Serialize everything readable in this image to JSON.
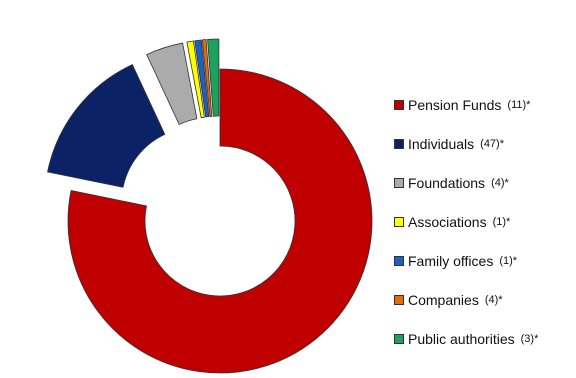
{
  "chart_data": {
    "type": "pie",
    "donut": true,
    "exploded": true,
    "values": [
      79,
      15,
      4,
      0.7,
      0.7,
      0.4,
      1.2
    ],
    "series": [
      {
        "name": "Pension Funds",
        "count": "(11)*",
        "color": "#C00000"
      },
      {
        "name": "Individuals",
        "count": "(47)*",
        "color": "#0B2266"
      },
      {
        "name": "Foundations",
        "count": "(4)*",
        "color": "#ABABAB"
      },
      {
        "name": "Associations",
        "count": "(1)*",
        "color": "#FFFF00"
      },
      {
        "name": "Family offices",
        "count": "(1)*",
        "color": "#1F5FBF"
      },
      {
        "name": "Companies",
        "count": "(4)*",
        "color": "#E46C0A"
      },
      {
        "name": "Public authorities",
        "count": "(3)*",
        "color": "#1DA25E"
      }
    ],
    "legend_position": "right"
  }
}
